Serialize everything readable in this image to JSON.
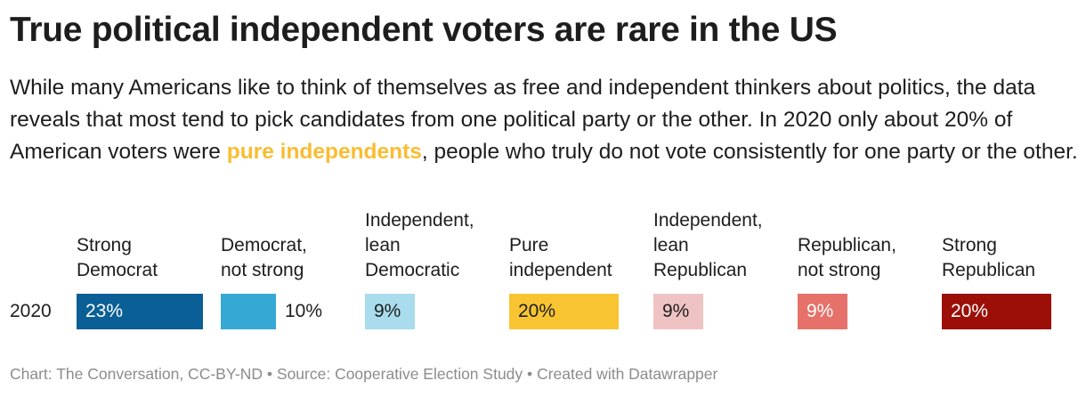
{
  "title": "True political independent voters are rare in the US",
  "description": {
    "before": "While many Americans like to think of themselves as free and independent thinkers about politics, the data reveals that most tend to pick candidates from one political party or the other. In 2020 only about 20% of American voters were ",
    "highlight": "pure independents",
    "after": ", people who truly do not vote consistently for one party or the other."
  },
  "colors": {
    "highlight": "#f9bd32"
  },
  "chart_data": {
    "type": "bar",
    "title": "True political independent voters are rare in the US",
    "row_label": "2020",
    "max_value": 23,
    "categories": [
      {
        "label_lines": [
          "Strong",
          "Democrat"
        ],
        "value": 23,
        "display": "23%",
        "color": "#0a5f96",
        "label_color": "#ffffff",
        "label_outside": false
      },
      {
        "label_lines": [
          "Democrat,",
          "not strong"
        ],
        "value": 10,
        "display": "10%",
        "color": "#35a8d4",
        "label_color": "#1d1d1d",
        "label_outside": true
      },
      {
        "label_lines": [
          "Independent,",
          "lean",
          "Democratic"
        ],
        "value": 9,
        "display": "9%",
        "color": "#a9dcec",
        "label_color": "#1d1d1d",
        "label_outside": false
      },
      {
        "label_lines": [
          "Pure",
          "independent"
        ],
        "value": 20,
        "display": "20%",
        "color": "#f9c432",
        "label_color": "#1d1d1d",
        "label_outside": false
      },
      {
        "label_lines": [
          "Independent,",
          "lean",
          "Republican"
        ],
        "value": 9,
        "display": "9%",
        "color": "#efc3c3",
        "label_color": "#1d1d1d",
        "label_outside": false
      },
      {
        "label_lines": [
          "Republican,",
          "not strong"
        ],
        "value": 9,
        "display": "9%",
        "color": "#e5716a",
        "label_color": "#ffffff",
        "label_outside": false
      },
      {
        "label_lines": [
          "Strong",
          "Republican"
        ],
        "value": 20,
        "display": "20%",
        "color": "#9b0f07",
        "label_color": "#ffffff",
        "label_outside": false
      }
    ]
  },
  "footer": {
    "chart": "Chart: The Conversation, CC-BY-ND",
    "source": "Source: Cooperative Election Study",
    "created": "Created with Datawrapper",
    "separator": "•"
  }
}
